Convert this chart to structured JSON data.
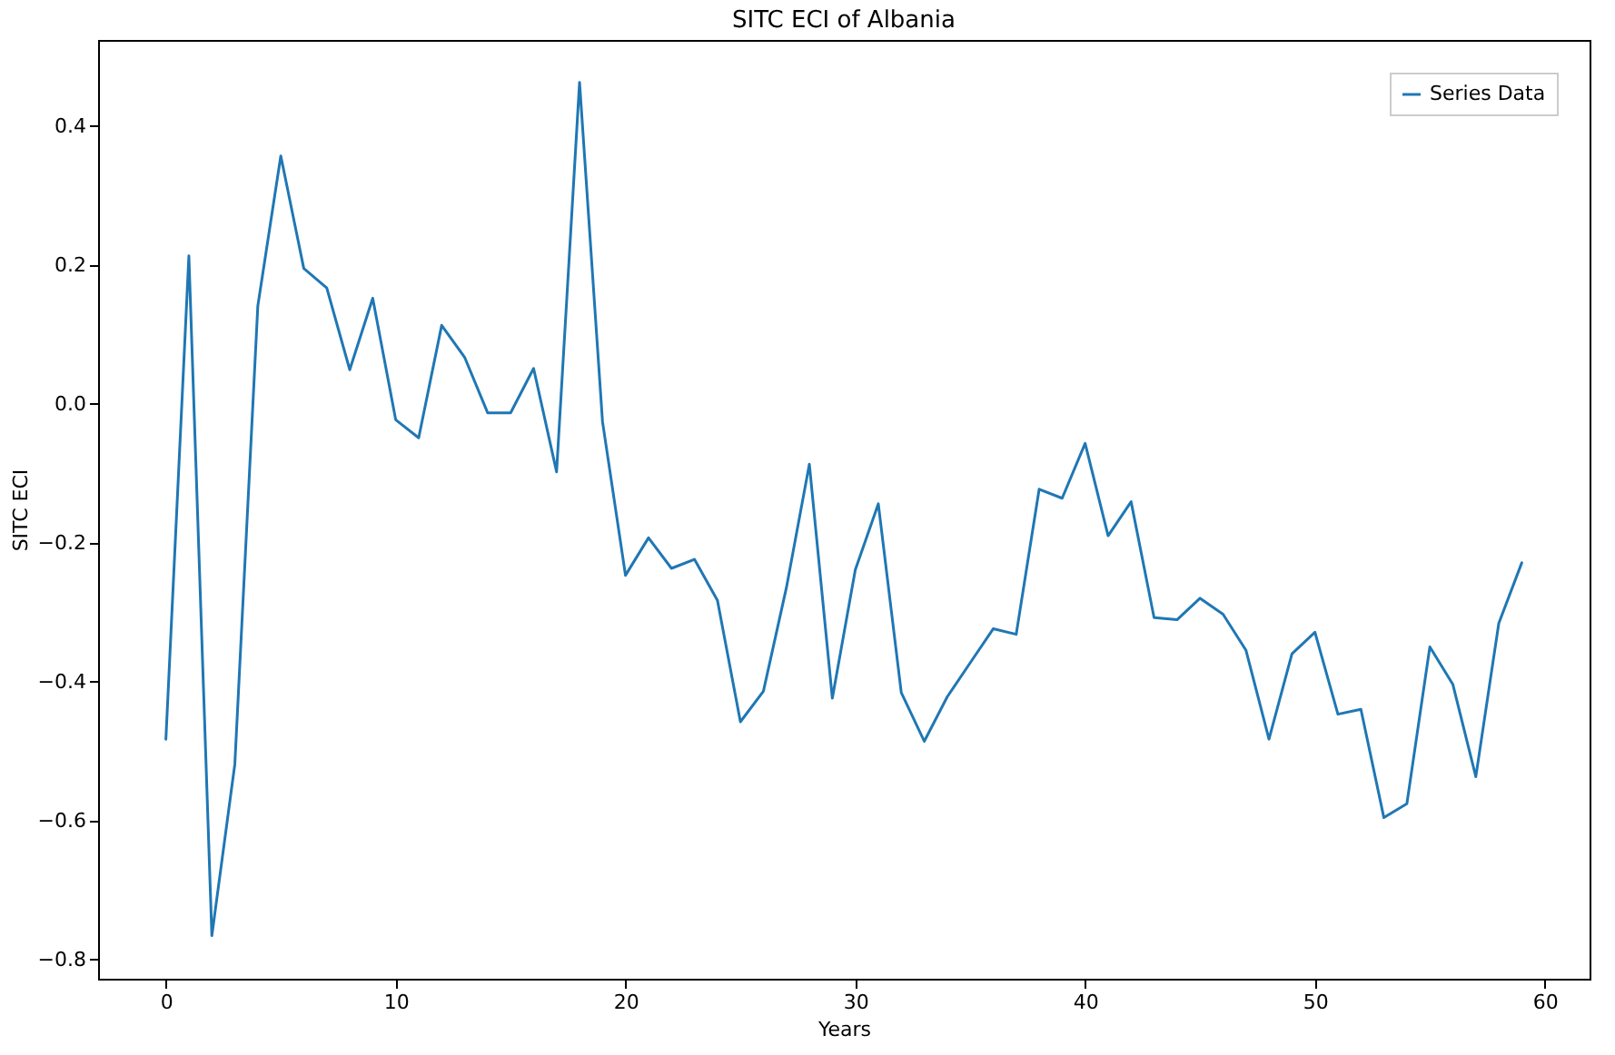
{
  "chart_data": {
    "type": "line",
    "title": "SITC ECI of Albania",
    "xlabel": "Years",
    "ylabel": "SITC ECI",
    "x": [
      0,
      1,
      2,
      3,
      4,
      5,
      6,
      7,
      8,
      9,
      10,
      11,
      12,
      13,
      14,
      15,
      16,
      17,
      18,
      19,
      20,
      21,
      22,
      23,
      24,
      25,
      26,
      27,
      28,
      29,
      30,
      31,
      32,
      33,
      34,
      35,
      36,
      37,
      38,
      39,
      40,
      41,
      42,
      43,
      44,
      45,
      46,
      47,
      48,
      49,
      50,
      51,
      52,
      53,
      54,
      55,
      56,
      57,
      58,
      59
    ],
    "series": [
      {
        "name": "Series Data",
        "color": "#1f77b4",
        "values": [
          -0.483,
          0.213,
          -0.766,
          -0.519,
          0.141,
          0.357,
          0.195,
          0.167,
          0.049,
          0.152,
          -0.023,
          -0.049,
          0.113,
          0.067,
          -0.013,
          -0.013,
          0.051,
          -0.098,
          0.463,
          -0.026,
          -0.247,
          -0.193,
          -0.237,
          -0.224,
          -0.283,
          -0.458,
          -0.414,
          -0.265,
          -0.087,
          -0.424,
          -0.239,
          -0.144,
          -0.416,
          -0.486,
          -0.422,
          -0.373,
          -0.324,
          -0.332,
          -0.123,
          -0.136,
          -0.057,
          -0.19,
          -0.141,
          -0.308,
          -0.311,
          -0.28,
          -0.303,
          -0.355,
          -0.483,
          -0.36,
          -0.329,
          -0.447,
          -0.44,
          -0.596,
          -0.576,
          -0.35,
          -0.404,
          -0.537,
          -0.316,
          -0.229
        ]
      }
    ],
    "xlim": [
      -2.95,
      61.95
    ],
    "xticks": [
      0,
      10,
      20,
      30,
      40,
      50,
      60
    ],
    "ylim": [
      -0.828,
      0.524
    ],
    "yticks": [
      -0.8,
      -0.6,
      -0.4,
      -0.2,
      {
        "value": 0,
        "label": "0.0"
      },
      0.2,
      0.4
    ],
    "legend": "top right",
    "grid": false,
    "marker": "none",
    "line_style": "solid"
  }
}
